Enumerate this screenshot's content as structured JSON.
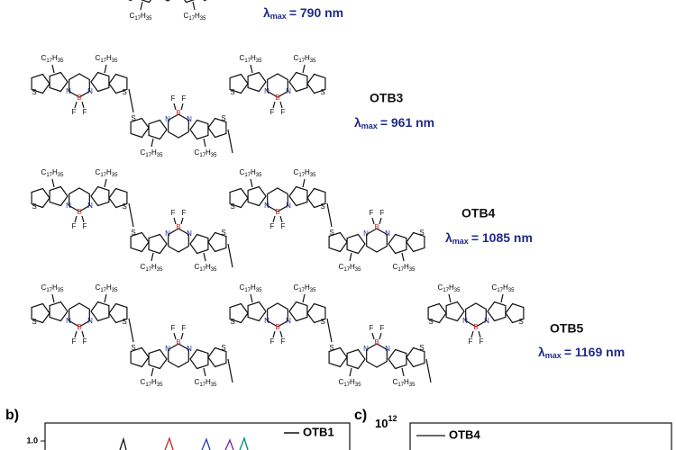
{
  "molecules": [
    {
      "lambda": "= 790 nm"
    },
    {
      "name": "OTB3",
      "lambda": "= 961 nm"
    },
    {
      "name": "OTB4",
      "lambda": "= 1085 nm"
    },
    {
      "name": "OTB5",
      "lambda": "= 1169 nm"
    }
  ],
  "lambda_symbol": "λ",
  "lambda_sub": "max",
  "atoms": {
    "sulfur": "S",
    "nitrogen": "N",
    "boron": "B",
    "fluorine": "F",
    "carbon": "C",
    "carbon_count": "17",
    "hydrogen": "H",
    "hydrogen_count": "35"
  },
  "panels": {
    "b": {
      "label": "b)",
      "ytick": "1.0",
      "legend": "OTB1"
    },
    "c": {
      "label": "c)",
      "ytick_base": "10",
      "ytick_exp": "12",
      "legend": "OTB4"
    }
  }
}
